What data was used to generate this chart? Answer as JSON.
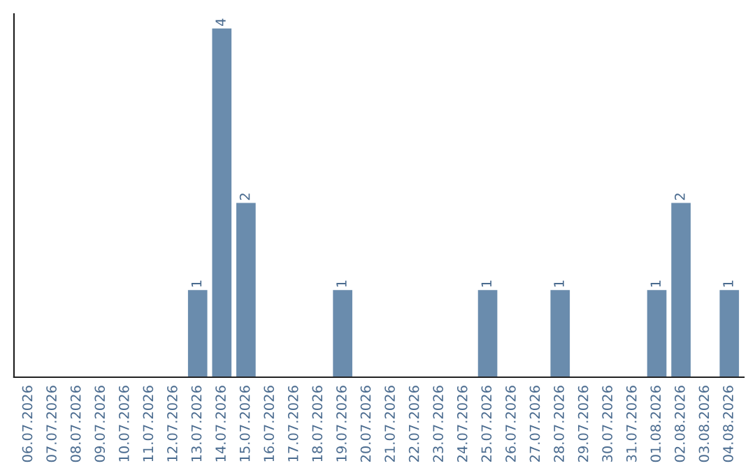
{
  "chart_data": {
    "type": "bar",
    "categories": [
      "06.07.2026",
      "07.07.2026",
      "08.07.2026",
      "09.07.2026",
      "10.07.2026",
      "11.07.2026",
      "12.07.2026",
      "13.07.2026",
      "14.07.2026",
      "15.07.2026",
      "16.07.2026",
      "17.07.2026",
      "18.07.2026",
      "19.07.2026",
      "20.07.2026",
      "21.07.2026",
      "22.07.2026",
      "23.07.2026",
      "24.07.2026",
      "25.07.2026",
      "26.07.2026",
      "27.07.2026",
      "28.07.2026",
      "29.07.2026",
      "30.07.2026",
      "31.07.2026",
      "01.08.2026",
      "02.08.2026",
      "03.08.2026",
      "04.08.2026"
    ],
    "values": [
      0,
      0,
      0,
      0,
      0,
      0,
      0,
      1,
      4,
      2,
      0,
      0,
      0,
      1,
      0,
      0,
      0,
      0,
      0,
      1,
      0,
      0,
      1,
      0,
      0,
      0,
      1,
      2,
      0,
      1
    ],
    "value_labels": [
      null,
      null,
      null,
      null,
      null,
      null,
      null,
      "1",
      "4",
      "2",
      null,
      null,
      null,
      "1",
      null,
      null,
      null,
      null,
      null,
      "1",
      null,
      null,
      "1",
      null,
      null,
      null,
      "1",
      "2",
      null,
      "1"
    ],
    "color": "#6a8cad",
    "grid": false,
    "legend": false
  }
}
